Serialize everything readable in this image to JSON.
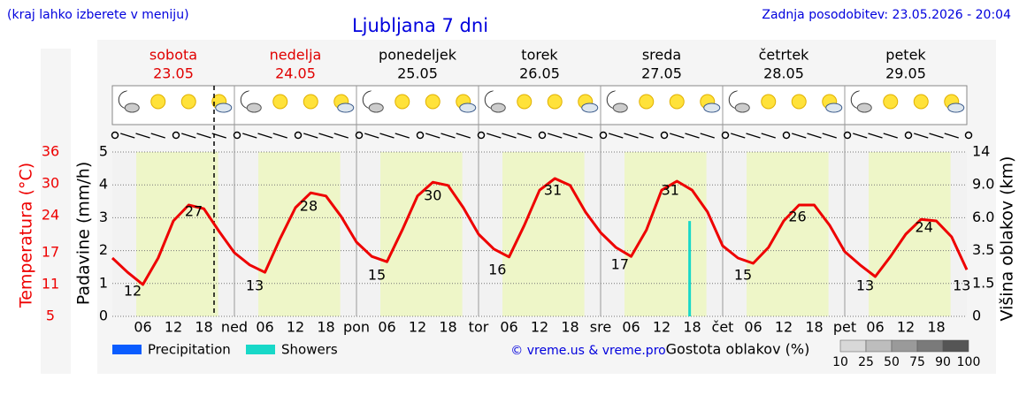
{
  "chart_data": {
    "type": "line",
    "note": "(kraj lahko izberete v meniju)",
    "title": "Ljubljana 7 dni",
    "updated": "Zadnja posodobitev: 23.05.2026 - 20:04",
    "credit": "© vreme.us & vreme.pro",
    "days": [
      {
        "name": "sobota",
        "date": "23.05",
        "color": "#e00000"
      },
      {
        "name": "nedelja",
        "date": "24.05",
        "color": "#e00000"
      },
      {
        "name": "ponedeljek",
        "date": "25.05",
        "color": "#000000"
      },
      {
        "name": "torek",
        "date": "26.05",
        "color": "#000000"
      },
      {
        "name": "sreda",
        "date": "27.05",
        "color": "#000000"
      },
      {
        "name": "četrtek",
        "date": "28.05",
        "color": "#000000"
      },
      {
        "name": "petek",
        "date": "29.05",
        "color": "#000000"
      }
    ],
    "x": [
      0,
      3,
      6,
      9,
      12,
      15,
      18,
      21,
      24,
      27,
      30,
      33,
      36,
      39,
      42,
      45,
      48,
      51,
      54,
      57,
      60,
      63,
      66,
      69,
      72,
      75,
      78,
      81,
      84,
      87,
      90,
      93,
      96,
      99,
      102,
      105,
      108,
      111,
      114,
      117,
      120,
      123,
      126,
      129,
      132,
      135,
      138,
      141,
      144,
      147,
      150,
      153,
      156,
      159,
      162,
      165,
      168
    ],
    "xlim": [
      0,
      168
    ],
    "xticks": [
      {
        "value": 6,
        "label": "06"
      },
      {
        "value": 12,
        "label": "12"
      },
      {
        "value": 18,
        "label": "18"
      },
      {
        "value": 24,
        "label": "ned"
      },
      {
        "value": 30,
        "label": "06"
      },
      {
        "value": 36,
        "label": "12"
      },
      {
        "value": 42,
        "label": "18"
      },
      {
        "value": 48,
        "label": "pon"
      },
      {
        "value": 54,
        "label": "06"
      },
      {
        "value": 60,
        "label": "12"
      },
      {
        "value": 66,
        "label": "18"
      },
      {
        "value": 72,
        "label": "tor"
      },
      {
        "value": 78,
        "label": "06"
      },
      {
        "value": 84,
        "label": "12"
      },
      {
        "value": 90,
        "label": "18"
      },
      {
        "value": 96,
        "label": "sre"
      },
      {
        "value": 102,
        "label": "06"
      },
      {
        "value": 108,
        "label": "12"
      },
      {
        "value": 114,
        "label": "18"
      },
      {
        "value": 120,
        "label": "čet"
      },
      {
        "value": 126,
        "label": "06"
      },
      {
        "value": 132,
        "label": "12"
      },
      {
        "value": 138,
        "label": "18"
      },
      {
        "value": 144,
        "label": "pet"
      },
      {
        "value": 150,
        "label": "06"
      },
      {
        "value": 156,
        "label": "12"
      },
      {
        "value": 162,
        "label": "18"
      }
    ],
    "now_x": 20,
    "temperature": {
      "axis_label": "Temperatura (°C)",
      "color": "#ee0000",
      "ylim": [
        5,
        36
      ],
      "yticks": [
        5,
        11,
        17,
        24,
        30,
        36
      ],
      "values": [
        16,
        13.3,
        11,
        16,
        23,
        26,
        25.3,
        21,
        17,
        14.7,
        13.3,
        19.7,
        25.5,
        28.3,
        27.7,
        23.8,
        19,
        16.3,
        15.3,
        21.3,
        27.7,
        30.3,
        29.7,
        25.5,
        20.5,
        17.7,
        16.2,
        22.2,
        28.8,
        31,
        29.7,
        24.7,
        20.8,
        18,
        16.3,
        21.3,
        28.8,
        30.5,
        28.8,
        24.7,
        18.3,
        16,
        15,
        18,
        23,
        26,
        26,
        22.2,
        17.2,
        14.7,
        12.5,
        16.3,
        20.5,
        23.3,
        23,
        20,
        13.8
      ],
      "extremes": {
        "x": [
          4,
          16,
          28,
          38.6,
          52,
          63,
          75.7,
          86.6,
          99.8,
          109.7,
          124,
          134.7,
          148,
          159.6,
          167
        ],
        "values": [
          12,
          27,
          13,
          28,
          15,
          30,
          16,
          31,
          17,
          31,
          15,
          26,
          13,
          24,
          13
        ]
      }
    },
    "ylabel": "Padavine (mm/h)",
    "ylim": [
      0,
      5
    ],
    "yticks": [
      0,
      1,
      2,
      3,
      4,
      5
    ],
    "grid": true,
    "y2label": "Višina oblakov (km)",
    "y2lim": [
      0,
      14
    ],
    "y2ticks": [
      0,
      1.5,
      3.5,
      {
        "value": 6,
        "label": "6.0"
      },
      {
        "value": 9,
        "label": "9.0"
      },
      14
    ],
    "series": [
      {
        "name": "Precipitation",
        "color": "#0a5cff",
        "x": [],
        "values": []
      },
      {
        "name": "Showers",
        "color": "#18d8c8",
        "x": [
          113.5
        ],
        "values": [
          2.9
        ]
      }
    ],
    "cloud_legend": {
      "title": "Gostota oblakov (%)",
      "ticks": [
        10,
        25,
        50,
        75,
        90,
        100
      ]
    }
  }
}
